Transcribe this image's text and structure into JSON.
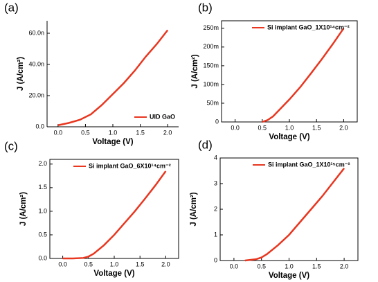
{
  "chart_data": [
    {
      "type": "line",
      "title": "(a)",
      "x_label": "Voltage (V)",
      "y_label": "J (A/cm²)",
      "x": [
        0,
        0.2,
        0.4,
        0.6,
        0.8,
        1.0,
        1.2,
        1.4,
        1.6,
        1.8,
        2.0
      ],
      "series": [
        {
          "name": "UID GaO",
          "color": "#e8361f",
          "values": [
            1,
            2.5,
            4.5,
            8,
            14,
            21,
            28,
            36,
            45,
            53,
            62
          ]
        }
      ],
      "xlim": [
        -0.2,
        2.2
      ],
      "xticks": [
        {
          "value": 0,
          "label": "0.0"
        },
        0.5,
        {
          "value": 1,
          "label": "1.0"
        },
        1.5,
        {
          "value": 2,
          "label": "2.0"
        }
      ],
      "ylim": [
        0,
        68
      ],
      "yticks": [
        {
          "value": 0,
          "label": "0.0"
        },
        {
          "value": 20,
          "label": "20.0n"
        },
        {
          "value": 40,
          "label": "40.0n"
        },
        {
          "value": 60,
          "label": "60.0n"
        }
      ],
      "legend": "lower right"
    },
    {
      "type": "line",
      "title": "(b)",
      "x_label": "Voltage (V)",
      "y_label": "J (A/cm²)",
      "x": [
        0.5,
        0.6,
        0.7,
        0.8,
        0.9,
        1.0,
        1.2,
        1.4,
        1.6,
        1.8,
        2.0
      ],
      "series": [
        {
          "name": "Si implant GaO_1X10¹⁴cm⁻²",
          "color": "#e8361f",
          "values": [
            0,
            5,
            15,
            30,
            45,
            60,
            93,
            130,
            168,
            208,
            250
          ]
        }
      ],
      "xlim": [
        -0.25,
        2.25
      ],
      "xticks": [
        {
          "value": 0,
          "label": "0.0"
        },
        0.5,
        {
          "value": 1,
          "label": "1.0"
        },
        1.5,
        {
          "value": 2,
          "label": "2.0"
        }
      ],
      "ylim": [
        0,
        270
      ],
      "yticks": [
        0,
        {
          "value": 50,
          "label": "50m"
        },
        {
          "value": 100,
          "label": "100m"
        },
        {
          "value": 150,
          "label": "150m"
        },
        {
          "value": 200,
          "label": "200m"
        },
        {
          "value": 250,
          "label": "250m"
        }
      ],
      "legend": "upper right"
    },
    {
      "type": "line",
      "title": "(c)",
      "x_label": "Voltage (V)",
      "y_label": "J (A/cm²)",
      "x": [
        0,
        0.2,
        0.4,
        0.5,
        0.6,
        0.8,
        1.0,
        1.2,
        1.4,
        1.6,
        1.8,
        2.0
      ],
      "series": [
        {
          "name": "Si implant GaO_6X10¹⁴cm⁻²",
          "color": "#e8361f",
          "values": [
            0,
            0,
            0.01,
            0.04,
            0.1,
            0.28,
            0.5,
            0.75,
            1.0,
            1.27,
            1.55,
            1.85
          ]
        }
      ],
      "xlim": [
        -0.25,
        2.25
      ],
      "xticks": [
        {
          "value": 0,
          "label": "0.0"
        },
        0.5,
        {
          "value": 1,
          "label": "1.0"
        },
        1.5,
        {
          "value": 2,
          "label": "2.0"
        }
      ],
      "ylim": [
        0,
        2.1
      ],
      "yticks": [
        {
          "value": 0,
          "label": "0.0"
        },
        0.5,
        {
          "value": 1,
          "label": "1.0"
        },
        1.5,
        {
          "value": 2,
          "label": "2.0"
        }
      ],
      "legend": "upper right"
    },
    {
      "type": "line",
      "title": "(d)",
      "x_label": "Voltage (V)",
      "y_label": "J (A/cm²)",
      "x": [
        0.2,
        0.4,
        0.5,
        0.6,
        0.8,
        1.0,
        1.2,
        1.4,
        1.6,
        1.8,
        2.0
      ],
      "series": [
        {
          "name": "Si implant GaO_1X10¹⁵cm⁻²",
          "color": "#e8361f",
          "values": [
            0,
            0.05,
            0.12,
            0.25,
            0.6,
            1.0,
            1.5,
            2.0,
            2.5,
            3.05,
            3.6
          ]
        }
      ],
      "xlim": [
        -0.25,
        2.25
      ],
      "xticks": [
        {
          "value": 0,
          "label": "0.0"
        },
        0.5,
        {
          "value": 1,
          "label": "1.0"
        },
        1.5,
        {
          "value": 2,
          "label": "2.0"
        }
      ],
      "ylim": [
        0,
        4
      ],
      "yticks": [
        0,
        1,
        2,
        3,
        4
      ],
      "legend": "upper right"
    }
  ]
}
